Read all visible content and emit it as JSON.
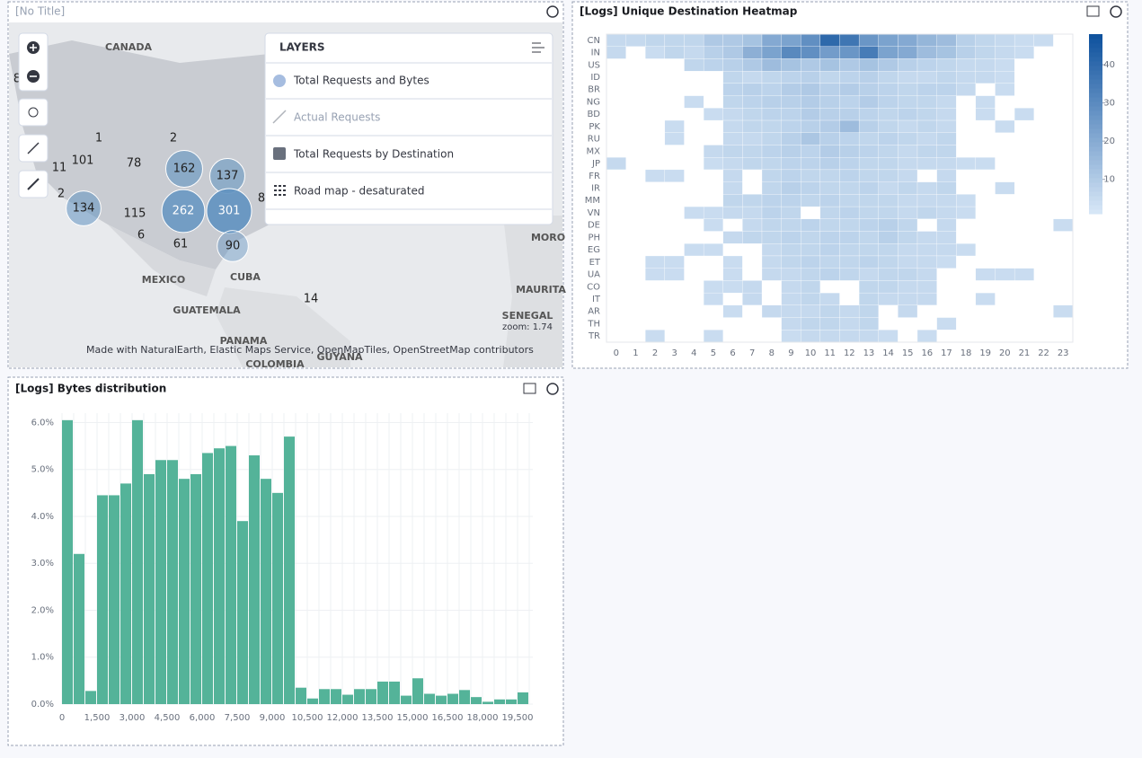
{
  "map": {
    "title": "[No Title]",
    "place_labels": [
      "CANADA",
      "MEXICO",
      "CUBA",
      "GUATEMALA",
      "PANAMA",
      "COLOMBIA",
      "GUYANA",
      "MORO",
      "MAURITA",
      "SENEGAL"
    ],
    "counts": [
      1,
      2,
      101,
      78,
      11,
      2,
      115,
      6,
      61,
      8,
      14,
      8
    ],
    "bubbles": [
      162,
      137,
      134,
      262,
      301,
      90
    ],
    "bubble_color": "#6092c0",
    "layers_title": "LAYERS",
    "layers": [
      "Total Requests and Bytes",
      "Actual Requests",
      "Total Requests by Destination",
      "Road map - desaturated"
    ],
    "attribution": "Made with NaturalEarth, Elastic Maps Service, OpenMapTiles, OpenStreetMap contributors",
    "zoom": "zoom: 1.74"
  },
  "heatmap": {
    "type": "heatmap",
    "title": "[Logs] Unique Destination Heatmap",
    "rows": [
      "CN",
      "IN",
      "US",
      "ID",
      "BR",
      "NG",
      "BD",
      "PK",
      "RU",
      "MX",
      "JP",
      "FR",
      "IR",
      "MM",
      "VN",
      "DE",
      "PH",
      "EG",
      "ET",
      "UA",
      "CO",
      "IT",
      "AR",
      "TH",
      "TR"
    ],
    "columns": [
      0,
      1,
      2,
      3,
      4,
      5,
      6,
      7,
      8,
      9,
      10,
      11,
      12,
      13,
      14,
      15,
      16,
      17,
      18,
      19,
      20,
      21,
      22,
      23
    ],
    "values": [
      [
        5,
        5,
        6,
        6,
        6,
        10,
        10,
        12,
        20,
        22,
        28,
        40,
        36,
        26,
        22,
        20,
        16,
        14,
        8,
        6,
        5,
        4,
        4,
        null
      ],
      [
        5,
        null,
        4,
        6,
        5,
        8,
        10,
        18,
        22,
        30,
        28,
        24,
        26,
        34,
        22,
        20,
        14,
        12,
        8,
        6,
        5,
        4,
        null,
        null
      ],
      [
        null,
        null,
        null,
        null,
        6,
        7,
        8,
        10,
        14,
        12,
        10,
        12,
        10,
        12,
        10,
        8,
        7,
        6,
        5,
        5,
        4,
        null,
        null,
        null
      ],
      [
        null,
        null,
        null,
        null,
        null,
        null,
        6,
        5,
        6,
        7,
        8,
        6,
        7,
        8,
        6,
        5,
        5,
        6,
        5,
        5,
        4,
        null,
        null,
        null
      ],
      [
        null,
        null,
        null,
        null,
        null,
        null,
        7,
        8,
        7,
        9,
        10,
        8,
        9,
        8,
        7,
        6,
        7,
        7,
        5,
        null,
        4,
        null,
        null,
        null
      ],
      [
        null,
        null,
        null,
        null,
        4,
        null,
        6,
        7,
        8,
        8,
        9,
        8,
        7,
        9,
        7,
        6,
        6,
        5,
        null,
        4,
        null,
        null,
        null,
        null
      ],
      [
        null,
        null,
        null,
        null,
        null,
        4,
        5,
        6,
        7,
        7,
        9,
        8,
        8,
        7,
        6,
        7,
        6,
        5,
        null,
        4,
        null,
        4,
        null,
        null
      ],
      [
        null,
        null,
        null,
        4,
        null,
        null,
        5,
        6,
        6,
        7,
        8,
        9,
        14,
        8,
        6,
        5,
        6,
        5,
        null,
        null,
        4,
        null,
        null,
        null
      ],
      [
        null,
        null,
        null,
        4,
        null,
        null,
        5,
        5,
        6,
        8,
        11,
        8,
        7,
        6,
        7,
        6,
        5,
        6,
        null,
        null,
        null,
        null,
        null,
        null
      ],
      [
        null,
        null,
        null,
        null,
        null,
        5,
        6,
        6,
        7,
        8,
        7,
        9,
        8,
        7,
        6,
        5,
        6,
        6,
        null,
        null,
        null,
        null,
        null,
        null
      ],
      [
        5,
        null,
        null,
        null,
        null,
        4,
        5,
        6,
        6,
        7,
        7,
        8,
        7,
        6,
        6,
        5,
        5,
        5,
        4,
        4,
        null,
        null,
        null,
        null
      ],
      [
        null,
        null,
        4,
        4,
        null,
        null,
        5,
        null,
        6,
        7,
        6,
        6,
        7,
        6,
        6,
        5,
        null,
        5,
        null,
        null,
        null,
        null,
        null,
        null
      ],
      [
        null,
        null,
        null,
        null,
        null,
        null,
        5,
        null,
        6,
        8,
        7,
        6,
        6,
        7,
        5,
        6,
        5,
        6,
        null,
        null,
        4,
        null,
        null,
        null
      ],
      [
        null,
        null,
        null,
        null,
        null,
        null,
        6,
        6,
        7,
        7,
        6,
        7,
        6,
        6,
        6,
        5,
        5,
        5,
        4,
        null,
        null,
        null,
        null,
        null
      ],
      [
        null,
        null,
        null,
        null,
        4,
        4,
        5,
        5,
        7,
        6,
        null,
        6,
        7,
        6,
        6,
        5,
        6,
        5,
        4,
        null,
        null,
        null,
        null,
        null
      ],
      [
        null,
        null,
        null,
        null,
        null,
        4,
        null,
        5,
        6,
        6,
        7,
        6,
        6,
        7,
        8,
        6,
        null,
        5,
        null,
        null,
        null,
        null,
        null,
        4
      ],
      [
        null,
        null,
        null,
        null,
        null,
        null,
        5,
        6,
        6,
        7,
        6,
        7,
        7,
        6,
        8,
        6,
        5,
        5,
        null,
        null,
        null,
        null,
        null,
        null
      ],
      [
        null,
        null,
        null,
        null,
        4,
        4,
        null,
        null,
        5,
        6,
        6,
        7,
        6,
        6,
        6,
        5,
        5,
        5,
        4,
        null,
        null,
        null,
        null,
        null
      ],
      [
        null,
        null,
        4,
        4,
        null,
        null,
        4,
        null,
        5,
        6,
        7,
        6,
        6,
        7,
        6,
        5,
        5,
        4,
        null,
        null,
        null,
        null,
        null,
        null
      ],
      [
        null,
        null,
        4,
        4,
        null,
        null,
        4,
        null,
        5,
        5,
        6,
        7,
        6,
        5,
        6,
        6,
        5,
        null,
        null,
        4,
        4,
        4,
        null,
        null
      ],
      [
        null,
        null,
        null,
        null,
        null,
        4,
        4,
        5,
        null,
        5,
        6,
        null,
        null,
        6,
        6,
        5,
        5,
        null,
        null,
        null,
        null,
        null,
        null,
        null
      ],
      [
        null,
        null,
        null,
        null,
        null,
        4,
        null,
        5,
        null,
        5,
        6,
        5,
        null,
        6,
        5,
        5,
        5,
        null,
        null,
        4,
        null,
        null,
        null,
        null
      ],
      [
        null,
        null,
        null,
        null,
        null,
        null,
        4,
        null,
        5,
        5,
        5,
        6,
        5,
        6,
        null,
        5,
        null,
        null,
        null,
        null,
        null,
        null,
        null,
        4
      ],
      [
        null,
        null,
        null,
        null,
        null,
        null,
        null,
        null,
        null,
        5,
        6,
        6,
        5,
        6,
        null,
        null,
        null,
        4,
        null,
        null,
        null,
        null,
        null,
        null
      ],
      [
        null,
        null,
        4,
        null,
        null,
        4,
        null,
        null,
        null,
        4,
        5,
        5,
        5,
        5,
        4,
        null,
        4,
        null,
        null,
        null,
        null,
        null,
        null,
        null
      ]
    ],
    "zlim": [
      1,
      48
    ],
    "zticks": [
      10,
      20,
      30,
      40
    ],
    "color_low": "#d6e6f6",
    "color_high": "#0b4f9c"
  },
  "histogram": {
    "type": "histogram",
    "title": "[Logs] Bytes distribution",
    "bins": [
      0,
      500,
      1000,
      1500,
      2000,
      2500,
      3000,
      3500,
      4000,
      4500,
      5000,
      5500,
      6000,
      6500,
      7000,
      7500,
      8000,
      8500,
      9000,
      9500,
      10000,
      10500,
      11000,
      11500,
      12000,
      12500,
      13000,
      13500,
      14000,
      14500,
      15000,
      15500,
      16000,
      16500,
      17000,
      17500,
      18000,
      18500,
      19000,
      19500,
      20000
    ],
    "values": [
      6.05,
      3.2,
      0.28,
      4.45,
      4.45,
      4.7,
      6.05,
      4.9,
      5.2,
      5.2,
      4.8,
      4.9,
      5.35,
      5.45,
      5.5,
      3.9,
      5.3,
      4.8,
      4.5,
      5.7,
      0.35,
      0.12,
      0.32,
      0.32,
      0.2,
      0.32,
      0.32,
      0.48,
      0.48,
      0.18,
      0.55,
      0.22,
      0.18,
      0.22,
      0.3,
      0.15,
      0.05,
      0.1,
      0.1,
      0.25
    ],
    "color": "#54b399",
    "xlim": [
      0,
      20000
    ],
    "ylim": [
      0,
      6.2
    ],
    "xticks": [
      0,
      {
        "value": 1500,
        "label": "1,500"
      },
      {
        "value": 3000,
        "label": "3,000"
      },
      {
        "value": 4500,
        "label": "4,500"
      },
      {
        "value": 6000,
        "label": "6,000"
      },
      {
        "value": 7500,
        "label": "7,500"
      },
      {
        "value": 9000,
        "label": "9,000"
      },
      {
        "value": 10500,
        "label": "10,500"
      },
      {
        "value": 12000,
        "label": "12,000"
      },
      {
        "value": 13500,
        "label": "13,500"
      },
      {
        "value": 15000,
        "label": "15,000"
      },
      {
        "value": 16500,
        "label": "16,500"
      },
      {
        "value": 18000,
        "label": "18,000"
      },
      {
        "value": 19500,
        "label": "19,500"
      }
    ],
    "yticks": [
      {
        "value": 0,
        "label": "0.0%"
      },
      {
        "value": 1,
        "label": "1.0%"
      },
      {
        "value": 2,
        "label": "2.0%"
      },
      {
        "value": 3,
        "label": "3.0%"
      },
      {
        "value": 4,
        "label": "4.0%"
      },
      {
        "value": 5,
        "label": "5.0%"
      },
      {
        "value": 6,
        "label": "6.0%"
      }
    ],
    "grid": true
  }
}
